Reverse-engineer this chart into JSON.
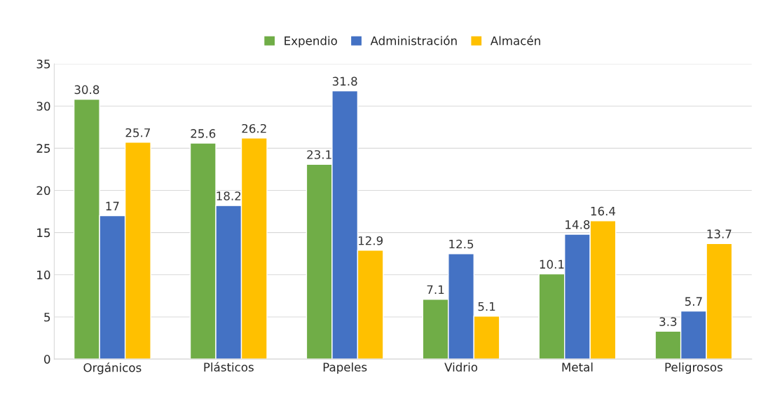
{
  "chart_data": {
    "type": "bar",
    "categories": [
      "Orgánicos",
      "Plásticos",
      "Papeles",
      "Vidrio",
      "Metal",
      "Peligrosos"
    ],
    "series": [
      {
        "name": "Expendio",
        "color": "#70ad47",
        "values": [
          30.8,
          25.6,
          23.1,
          7.1,
          10.1,
          3.3
        ]
      },
      {
        "name": "Administración",
        "color": "#4472c4",
        "values": [
          17,
          18.2,
          31.8,
          12.5,
          14.8,
          5.7
        ]
      },
      {
        "name": "Almacén",
        "color": "#ffc000",
        "values": [
          25.7,
          26.2,
          12.9,
          5.1,
          16.4,
          13.7
        ]
      }
    ],
    "ylim": [
      0,
      35
    ],
    "yticks": [
      0,
      5,
      10,
      15,
      20,
      25,
      30,
      35
    ],
    "grid": "y",
    "legend": "top",
    "data_labels": true
  }
}
